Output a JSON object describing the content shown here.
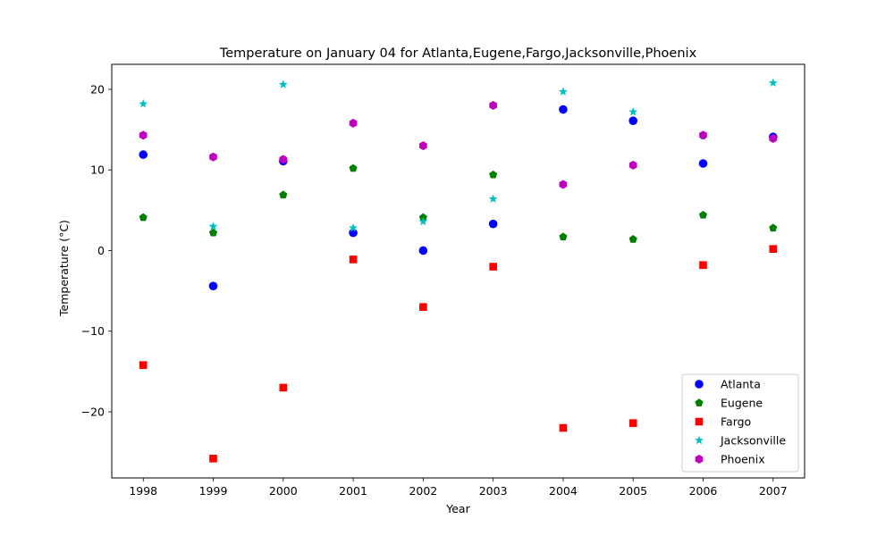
{
  "chart_data": {
    "type": "scatter",
    "title": "Temperature on January 04 for Atlanta,Eugene,Fargo,Jacksonville,Phoenix",
    "xlabel": "Year",
    "ylabel": "Temperature (°C)",
    "x": [
      1998,
      1999,
      2000,
      2001,
      2002,
      2003,
      2004,
      2005,
      2006,
      2007
    ],
    "xticks": [
      "1998",
      "1999",
      "2000",
      "2001",
      "2002",
      "2003",
      "2004",
      "2005",
      "2006",
      "2007"
    ],
    "yticks": [
      -20,
      -10,
      0,
      10,
      20
    ],
    "ytick_labels": [
      "−20",
      "−10",
      "0",
      "10",
      "20"
    ],
    "xlim": [
      1997.55,
      2007.45
    ],
    "ylim": [
      -28.2,
      23.1
    ],
    "grid": false,
    "legend_position": "lower right",
    "series": [
      {
        "name": "Atlanta",
        "marker": "circle",
        "color": "#0000ff",
        "values": [
          11.9,
          -4.4,
          11.1,
          2.2,
          0.0,
          3.3,
          17.5,
          16.1,
          10.8,
          14.1
        ]
      },
      {
        "name": "Eugene",
        "marker": "pentagon",
        "color": "#008000",
        "values": [
          4.1,
          2.2,
          6.9,
          10.2,
          4.1,
          9.4,
          1.7,
          1.4,
          4.4,
          2.8
        ]
      },
      {
        "name": "Fargo",
        "marker": "square",
        "color": "#ff0000",
        "values": [
          -14.2,
          -25.8,
          -17.0,
          -1.1,
          -7.0,
          -2.0,
          -22.0,
          -21.4,
          -1.8,
          0.2
        ]
      },
      {
        "name": "Jacksonville",
        "marker": "star",
        "color": "#00bfbf",
        "values": [
          18.2,
          3.0,
          20.6,
          2.8,
          3.6,
          6.4,
          19.7,
          17.2,
          14.2,
          20.8
        ]
      },
      {
        "name": "Phoenix",
        "marker": "hexagon",
        "color": "#bf00bf",
        "values": [
          14.3,
          11.6,
          11.3,
          15.8,
          13.0,
          18.0,
          8.2,
          10.6,
          14.3,
          13.9
        ]
      }
    ]
  }
}
